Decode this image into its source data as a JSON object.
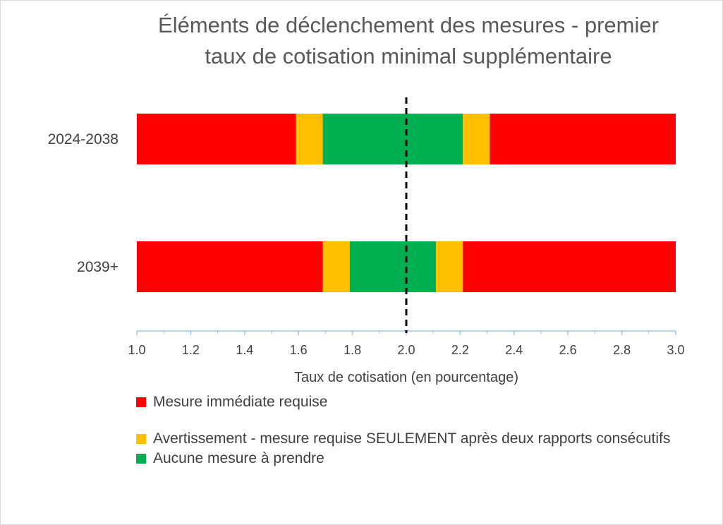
{
  "chart_data": {
    "type": "bar",
    "orientation": "horizontal",
    "stacked": true,
    "title": "Éléments de déclenchement des mesures - premier taux de cotisation minimal supplémentaire",
    "title_lines": [
      "Éléments de déclenchement des mesures - premier",
      "taux de cotisation minimal supplémentaire"
    ],
    "xlabel": "Taux de cotisation (en pourcentage)",
    "ylabel": "",
    "xlim": [
      1.0,
      3.0
    ],
    "x_ticks": [
      "1.0",
      "1.2",
      "1.4",
      "1.6",
      "1.8",
      "2.0",
      "2.2",
      "2.4",
      "2.6",
      "2.8",
      "3.0"
    ],
    "reference_line": {
      "x": 2.0,
      "style": "dashed"
    },
    "categories": [
      "2024-2038",
      "2039+"
    ],
    "bars": [
      {
        "category": "2024-2038",
        "segments": [
          {
            "status": "red",
            "from": 1.0,
            "to": 1.59
          },
          {
            "status": "yellow",
            "from": 1.59,
            "to": 1.69
          },
          {
            "status": "green",
            "from": 1.69,
            "to": 2.21
          },
          {
            "status": "yellow",
            "from": 2.21,
            "to": 2.31
          },
          {
            "status": "red",
            "from": 2.31,
            "to": 3.0
          }
        ]
      },
      {
        "category": "2039+",
        "segments": [
          {
            "status": "red",
            "from": 1.0,
            "to": 1.69
          },
          {
            "status": "yellow",
            "from": 1.69,
            "to": 1.79
          },
          {
            "status": "green",
            "from": 1.79,
            "to": 2.11
          },
          {
            "status": "yellow",
            "from": 2.11,
            "to": 2.21
          },
          {
            "status": "red",
            "from": 2.21,
            "to": 3.0
          }
        ]
      }
    ],
    "colors": {
      "red": "#ff0000",
      "yellow": "#ffc000",
      "green": "#00b050"
    },
    "legend_position": "bottom-left",
    "legend": [
      {
        "status": "red",
        "label": "Mesure immédiate requise"
      },
      {
        "status": "yellow",
        "label": "Avertissement - mesure requise SEULEMENT après deux rapports consécutifs"
      },
      {
        "status": "green",
        "label": "Aucune mesure à prendre"
      }
    ],
    "grid": false
  }
}
